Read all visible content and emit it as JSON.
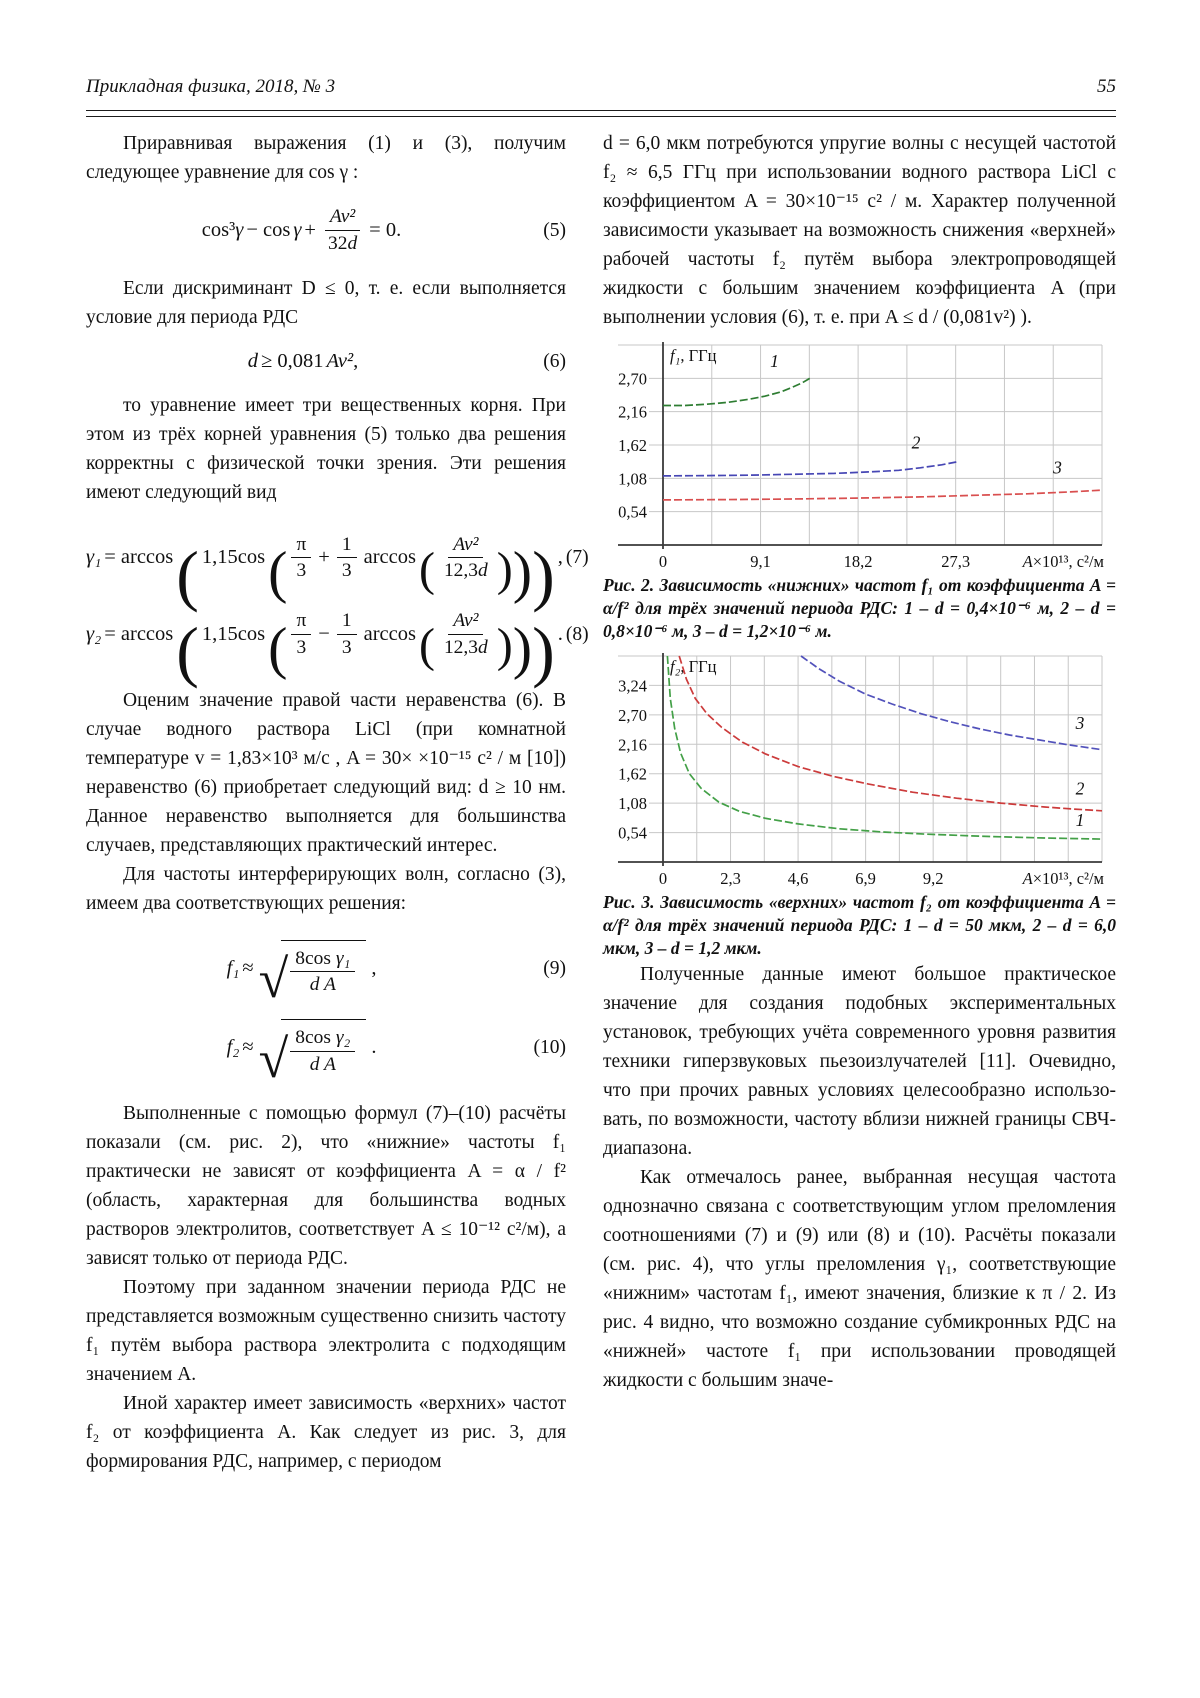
{
  "header": {
    "journal": "Прикладная физика, 2018, № 3",
    "page_number": "55"
  },
  "left_column": {
    "p1": "Приравнивая выражения (1) и (3), получим следующее уравнение для cos γ :",
    "eq5": {
      "t_cos3": "cos³",
      "t_g1": "γ",
      "t_mid": "− cos",
      "t_g2": "γ",
      "t_plus": "+",
      "num": "Av²",
      "den_coef": "32",
      "den_var": "d",
      "t_end": "= 0.",
      "no": "(5)"
    },
    "p2": "Если дискриминант D ≤ 0, т. е. если выпол­няется условие для периода РДС",
    "eq6": {
      "t_var": "d",
      "t_rel": "≥ 0,081",
      "t_expr": "Av²",
      "t_comma": ",",
      "no": "(6)"
    },
    "p3": "то уравнение имеет три вещественных корня. При этом из трёх корней уравнения (5) только два ре­шения корректны с физической точки зрения. Эти решения имеют следующий вид",
    "eq7": {
      "lhs": "γ₁",
      "rel": "= arccos",
      "coef": "1,15cos",
      "f1n": "π",
      "f1d": "3",
      "op": "+",
      "f2n": "1",
      "f2d": "3",
      "arc": "arccos",
      "f3n": "Av²",
      "f3d_coef": "12,3",
      "f3d_var": "d",
      "tail": ",",
      "no": "(7)"
    },
    "eq8": {
      "lhs": "γ₂",
      "rel": "= arccos",
      "coef": "1,15cos",
      "f1n": "π",
      "f1d": "3",
      "op": "−",
      "f2n": "1",
      "f2d": "3",
      "arc": "arccos",
      "f3n": "Av²",
      "f3d_coef": "12,3",
      "f3d_var": "d",
      "tail": ".",
      "no": "(8)"
    },
    "p4": "Оценим значение правой части неравенства (6). В случае водного раствора LiCl (при комнат­ной температуре v = 1,83×10³ м/с ,  A = 30× ×10⁻¹⁵ с² / м  [10]) неравенство (6) приобретает следующий вид: d ≥ 10 нм. Данное неравенство выполняется для большинства случаев, представ­ляющих практический интерес.",
    "p5": "Для частоты интерферирующих волн, со­гласно (3), имеем два соответствующих решения:",
    "eq9": {
      "lhs": "f₁",
      "approx": "≈",
      "num_rm": "8cos ",
      "num_it": "γ₁",
      "den": "d A",
      "tail": ",",
      "no": "(9)"
    },
    "eq10": {
      "lhs": "f₂",
      "approx": "≈",
      "num_rm": "8cos ",
      "num_it": "γ₂",
      "den": "d A",
      "tail": ".",
      "no": "(10)"
    },
    "p6": "Выполненные с помощью формул (7)–(10) расчёты показали (см. рис. 2), что «нижние» ча­стоты f₁ практически не зависят от коэффициента A = α / f² (область, характерная для большинства водных растворов электролитов, соответствует A ≤ 10⁻¹² с²/м), а зависят только от периода РДС.",
    "p7": "Поэтому при заданном значении периода РДС не представляется возможным существенно снизить частоту f₁ путём выбора раствора элек­тролита с подходящим значением A.",
    "p8": "Иной характер имеет зависимость «верхних» частот f₂ от коэффициента A. Как следует из рис. 3, для формирования РДС, например, с периодом"
  },
  "right_column": {
    "p1": "d = 6,0 мкм потребуются упругие волны с несущей частотой f₂ ≈ 6,5 ГГц при использовании водного раствора LiCl с коэффициентом A = 30×10⁻¹⁵ с² / м. Характер полученной зависимости указывает на возможность снижения «верхней» рабочей частоты f₂ путём выбора электропроводящей жидкости с большим значением коэффициента A (при выпол­нении условия (6), т. е. при A ≤ d / (0,081v²) ).",
    "fig2_caption": "Рис. 2. Зависимость «нижних» частот f₁ от коэффициента A = α/f² для трёх значений периода РДС: 1 – d = 0,4×10⁻⁶ м, 2 – d = 0,8×10⁻⁶ м, 3 – d = 1,2×10⁻⁶ м.",
    "fig3_caption": "Рис. 3. Зависимость «верхних» частот f₂ от коэффициен­та A = α/f² для трёх значений периода РДС: 1 – d = 50 мкм, 2 – d = 6,0 мкм, 3 – d = 1,2 мкм.",
    "p2": "Полученные данные имеют большое прак­тическое значение для создания подобных экспе­риментальных установок, требующих учёта современного уровня развития техники гиперзву­ковых пьезоизлучателей [11]. Очевидно, что при прочих равных условиях целесообразно использо­вать, по возможности, частоту вблизи нижней гра­ницы СВЧ-диапазона.",
    "p3": "Как отмечалось ранее, выбранная несущая частота однозначно связана с соответствующим углом преломления соотношениями (7) и (9) или (8) и (10). Расчёты показали (см. рис. 4), что углы преломления γ₁, соответствующие «нижним» частотам f₁, имеют значения, близкие к π / 2. Из рис. 4 видно, что возможно создание субмик­ронных РДС на «нижней» частоте f₁ при исполь­зовании проводящей жидкости с большим значе-"
  },
  "chart_data": [
    {
      "figure": "Рис. 2",
      "type": "line",
      "title": "Зависимость «нижних» частот f₁ от коэффициента A = α/f²",
      "x_axis": {
        "label_var": "A",
        "label_rest": "×10¹³, с²/м",
        "min": 0,
        "max": 40.95,
        "grid_step": 4.55,
        "ticks": [
          {
            "v": 0,
            "t": "0"
          },
          {
            "v": 9.1,
            "t": "9,1"
          },
          {
            "v": 18.2,
            "t": "18,2"
          },
          {
            "v": 27.3,
            "t": "27,3"
          }
        ]
      },
      "y_axis": {
        "label_var": "f₁",
        "label_rest": ", ГГц",
        "min": 0,
        "max": 3.24,
        "grid_step": 0.54,
        "ticks": [
          {
            "v": 2.7,
            "t": "2,70"
          },
          {
            "v": 2.16,
            "t": "2,16"
          },
          {
            "v": 1.62,
            "t": "1,62"
          },
          {
            "v": 1.08,
            "t": "1,08"
          },
          {
            "v": 0.54,
            "t": "0,54"
          }
        ]
      },
      "grid": true,
      "legend": "labels-on-curves",
      "series": [
        {
          "name": "1: d = 0,4×10⁻⁶ м",
          "color": "#2e7d32",
          "label": "1",
          "label_at": [
            10.4,
            2.88
          ],
          "points": [
            [
              0,
              2.26
            ],
            [
              2,
              2.26
            ],
            [
              4,
              2.28
            ],
            [
              6,
              2.31
            ],
            [
              8,
              2.36
            ],
            [
              9.5,
              2.41
            ],
            [
              11,
              2.48
            ],
            [
              12,
              2.55
            ],
            [
              13,
              2.63
            ],
            [
              13.7,
              2.7
            ]
          ]
        },
        {
          "name": "2: d = 0,8×10⁻⁶ м",
          "color": "#4646b4",
          "label": "2",
          "label_at": [
            23.6,
            1.56
          ],
          "points": [
            [
              0,
              1.12
            ],
            [
              4,
              1.125
            ],
            [
              8,
              1.13
            ],
            [
              12,
              1.145
            ],
            [
              16,
              1.16
            ],
            [
              20,
              1.19
            ],
            [
              22,
              1.21
            ],
            [
              24,
              1.25
            ],
            [
              26,
              1.3
            ],
            [
              27.5,
              1.35
            ]
          ]
        },
        {
          "name": "3: d = 1,2×10⁻⁶ м",
          "color": "#d94f4f",
          "label": "3",
          "label_at": [
            36.8,
            1.16
          ],
          "points": [
            [
              0,
              0.73
            ],
            [
              6,
              0.735
            ],
            [
              12,
              0.745
            ],
            [
              18,
              0.76
            ],
            [
              24,
              0.78
            ],
            [
              30,
              0.81
            ],
            [
              34,
              0.83
            ],
            [
              38,
              0.86
            ],
            [
              40.95,
              0.89
            ]
          ]
        }
      ]
    },
    {
      "figure": "Рис. 3",
      "type": "line",
      "title": "Зависимость «верхних» частот f₂ от коэффициента A = α/f²",
      "x_axis": {
        "label_var": "A",
        "label_rest": "×10¹³, с²/м",
        "min": 0,
        "max": 14.95,
        "grid_step": 1.15,
        "ticks": [
          {
            "v": 0,
            "t": "0"
          },
          {
            "v": 2.3,
            "t": "2,3"
          },
          {
            "v": 4.6,
            "t": "4,6"
          },
          {
            "v": 6.9,
            "t": "6,9"
          },
          {
            "v": 9.2,
            "t": "9,2"
          }
        ]
      },
      "y_axis": {
        "label_var": "f₂",
        "label_rest": ", ГГц",
        "min": 0,
        "max": 3.78,
        "grid_step": 0.54,
        "ticks": [
          {
            "v": 3.24,
            "t": "3,24"
          },
          {
            "v": 2.7,
            "t": "2,70"
          },
          {
            "v": 2.16,
            "t": "2,16"
          },
          {
            "v": 1.62,
            "t": "1,62"
          },
          {
            "v": 1.08,
            "t": "1,08"
          },
          {
            "v": 0.54,
            "t": "0,54"
          }
        ]
      },
      "grid": true,
      "legend": "labels-on-curves",
      "series": [
        {
          "name": "1: d = 50 мкм",
          "color": "#43a047",
          "label": "1",
          "label_at": [
            14.2,
            0.66
          ],
          "points": [
            [
              0.15,
              3.78
            ],
            [
              0.25,
              3.0
            ],
            [
              0.4,
              2.45
            ],
            [
              0.6,
              2.0
            ],
            [
              0.9,
              1.62
            ],
            [
              1.3,
              1.35
            ],
            [
              1.9,
              1.1
            ],
            [
              2.6,
              0.93
            ],
            [
              3.5,
              0.8
            ],
            [
              4.6,
              0.7
            ],
            [
              6,
              0.61
            ],
            [
              7.5,
              0.55
            ],
            [
              9,
              0.51
            ],
            [
              11,
              0.47
            ],
            [
              13,
              0.44
            ],
            [
              14.95,
              0.42
            ]
          ]
        },
        {
          "name": "2: d = 6,0 мкм",
          "color": "#cc3b3b",
          "label": "2",
          "label_at": [
            14.2,
            1.24
          ],
          "points": [
            [
              0.55,
              3.78
            ],
            [
              0.8,
              3.35
            ],
            [
              1.1,
              3.0
            ],
            [
              1.5,
              2.72
            ],
            [
              2,
              2.47
            ],
            [
              2.7,
              2.2
            ],
            [
              3.5,
              1.98
            ],
            [
              4.6,
              1.75
            ],
            [
              5.8,
              1.57
            ],
            [
              7,
              1.43
            ],
            [
              8.5,
              1.28
            ],
            [
              10,
              1.17
            ],
            [
              11.5,
              1.08
            ],
            [
              13,
              1.01
            ],
            [
              14,
              0.97
            ],
            [
              14.95,
              0.94
            ]
          ]
        },
        {
          "name": "3: d = 1,2 мкм",
          "color": "#5252bb",
          "label": "3",
          "label_at": [
            14.2,
            2.44
          ],
          "points": [
            [
              4.7,
              3.78
            ],
            [
              5.3,
              3.55
            ],
            [
              6,
              3.32
            ],
            [
              6.9,
              3.08
            ],
            [
              7.8,
              2.9
            ],
            [
              8.8,
              2.72
            ],
            [
              9.8,
              2.57
            ],
            [
              10.8,
              2.44
            ],
            [
              11.8,
              2.33
            ],
            [
              12.8,
              2.24
            ],
            [
              13.8,
              2.15
            ],
            [
              14.95,
              2.06
            ]
          ]
        }
      ]
    }
  ]
}
